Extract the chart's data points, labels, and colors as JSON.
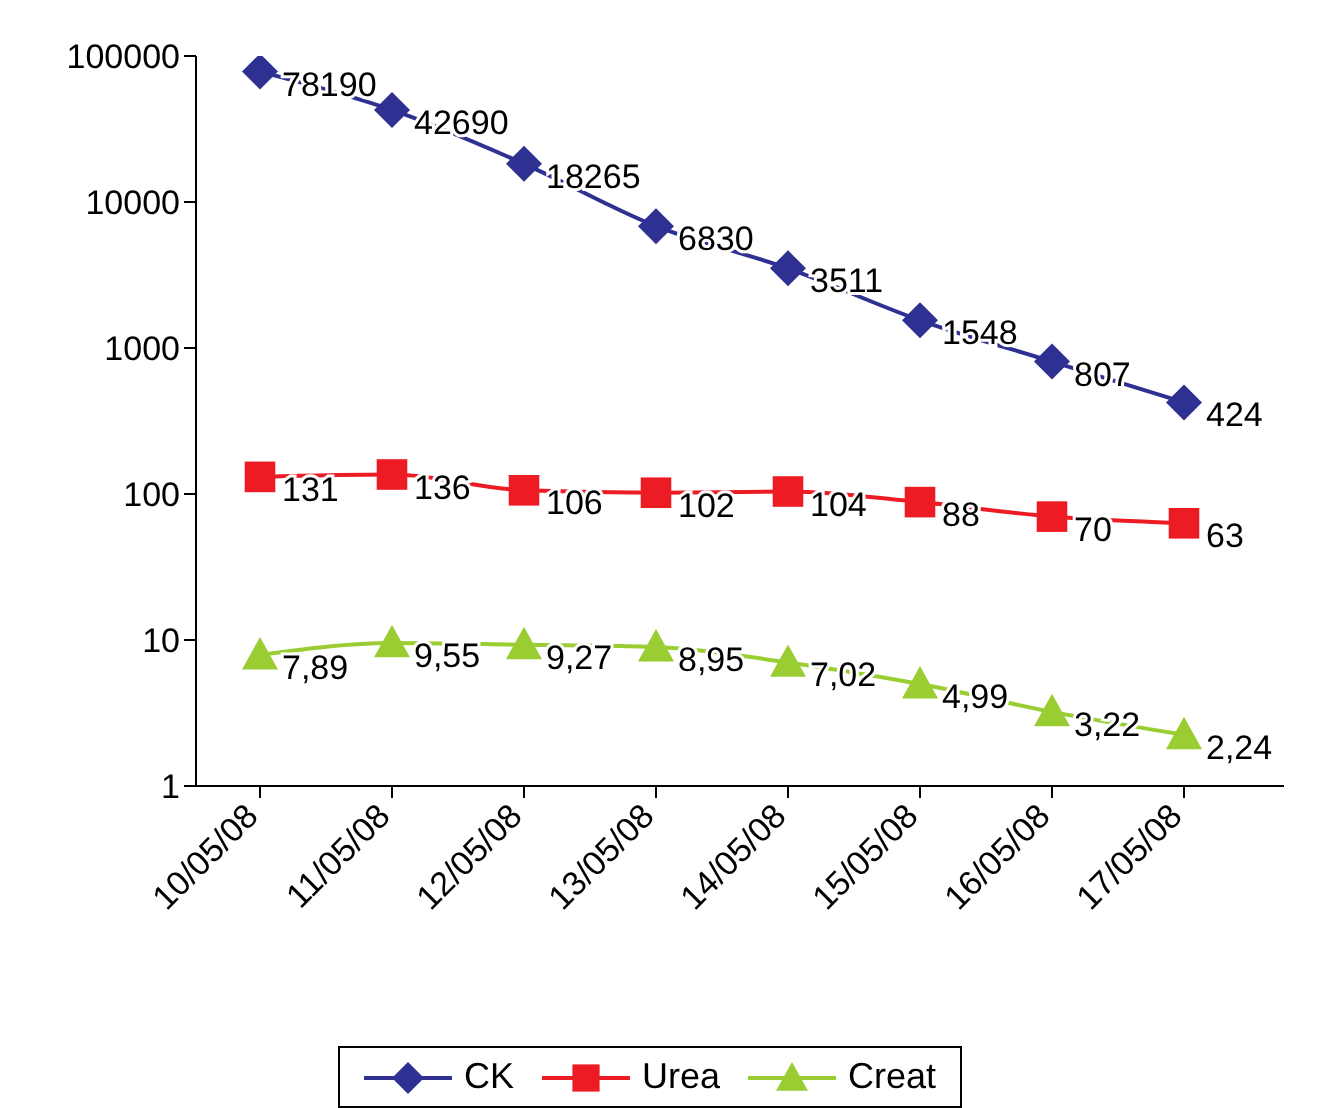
{
  "chart_data": {
    "type": "line",
    "categories": [
      "10/05/08",
      "11/05/08",
      "12/05/08",
      "13/05/08",
      "14/05/08",
      "15/05/08",
      "16/05/08",
      "17/05/08"
    ],
    "series": [
      {
        "name": "CK",
        "color": "#2e3192",
        "marker": "diamond",
        "values": [
          78190,
          42690,
          18265,
          6830,
          3511,
          1548,
          807,
          424
        ],
        "value_labels": [
          "78190",
          "42690",
          "18265",
          "6830",
          "3511",
          "1548",
          "807",
          "424"
        ]
      },
      {
        "name": "Urea",
        "color": "#ed1c24",
        "marker": "square",
        "values": [
          131,
          136,
          106,
          102,
          104,
          88,
          70,
          63
        ],
        "value_labels": [
          "131",
          "136",
          "106",
          "102",
          "104",
          "88",
          "70",
          "63"
        ]
      },
      {
        "name": "Creat",
        "color": "#9acd32",
        "marker": "triangle",
        "values": [
          7.89,
          9.55,
          9.27,
          8.95,
          7.02,
          4.99,
          3.22,
          2.24
        ],
        "value_labels": [
          "7,89",
          "9,55",
          "9,27",
          "8,95",
          "7,02",
          "4,99",
          "3,22",
          "2,24"
        ]
      }
    ],
    "log": "y",
    "ylim": [
      1,
      100000
    ],
    "yticks": [
      1,
      10,
      100,
      1000,
      10000,
      100000
    ],
    "grid": false,
    "legend": "bottom",
    "line_style": "solid"
  }
}
